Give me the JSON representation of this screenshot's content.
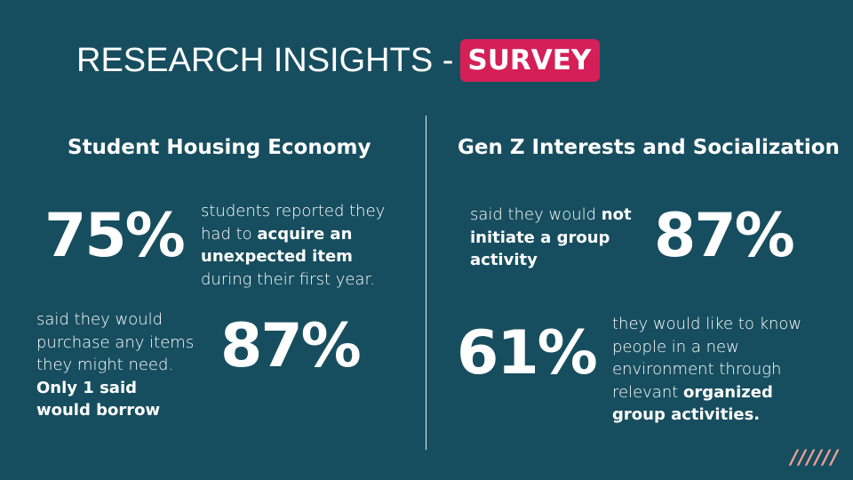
{
  "title": {
    "main": "RESEARCH INSIGHTS - ",
    "badge": "SURVEY"
  },
  "left": {
    "heading": "Student Housing Economy",
    "stat1": {
      "value": "75%",
      "text_pre": "students reported they had to ",
      "text_bold": "acquire an unexpected item",
      "text_post": " during their first year."
    },
    "stat2": {
      "value": "87%",
      "text_pre": "said they would purchase any items they might need. ",
      "text_bold": "Only 1 said would borrow",
      "text_post": ""
    }
  },
  "right": {
    "heading": "Gen Z Interests and Socialization",
    "stat1": {
      "value": "87%",
      "text_pre": "said they would ",
      "text_bold": "not initiate a group activity",
      "text_post": ""
    },
    "stat2": {
      "value": "61%",
      "text_pre": "they would like to know people in a new environment through relevant ",
      "text_bold": "organized group activities.",
      "text_post": ""
    }
  },
  "decor": {
    "slashes": "//////"
  },
  "colors": {
    "background": "#174e5f",
    "badge": "#d41f58",
    "slashes": "#f1a294"
  }
}
